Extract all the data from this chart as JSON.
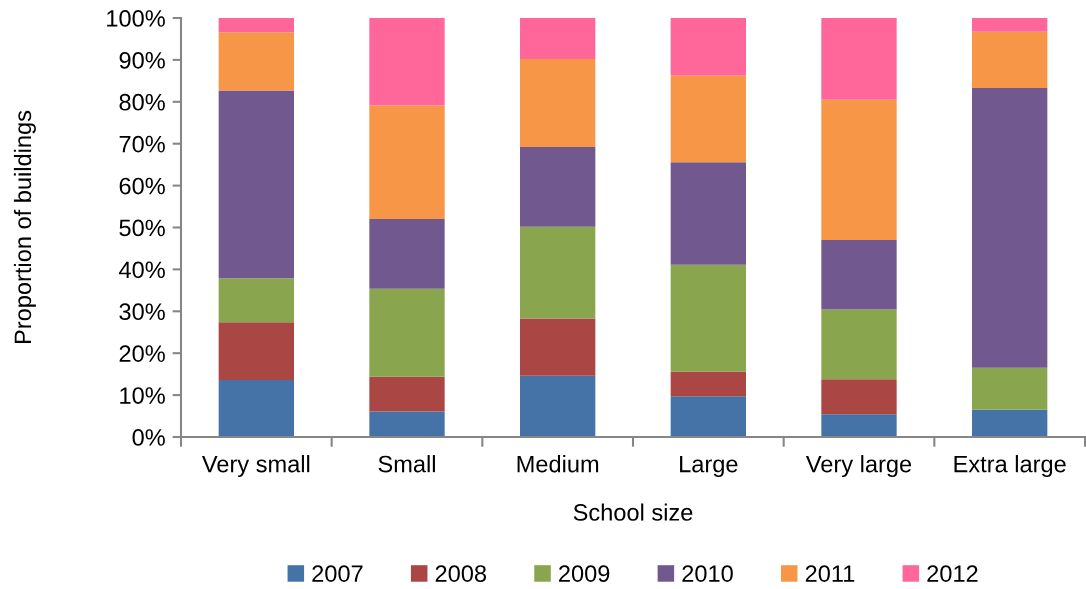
{
  "chart_data": {
    "type": "bar",
    "stacked": true,
    "xlabel": "School size",
    "ylabel": "Proportion of buildings",
    "categories": [
      "Very small",
      "Small",
      "Medium",
      "Large",
      "Very large",
      "Extra large"
    ],
    "series": [
      {
        "name": "2007",
        "color": "#4572a7",
        "values": [
          13.6,
          6.1,
          14.6,
          9.7,
          5.4,
          6.5
        ]
      },
      {
        "name": "2008",
        "color": "#aa4643",
        "values": [
          13.8,
          8.3,
          13.7,
          5.9,
          8.4,
          0
        ]
      },
      {
        "name": "2009",
        "color": "#89a54e",
        "values": [
          10.5,
          21.0,
          21.9,
          25.5,
          16.6,
          10.0
        ]
      },
      {
        "name": "2010",
        "color": "#71588f",
        "values": [
          44.8,
          16.6,
          19.0,
          24.5,
          16.6,
          66.8
        ]
      },
      {
        "name": "2011",
        "color": "#f79646",
        "values": [
          13.9,
          27.1,
          21.0,
          20.7,
          33.5,
          13.4
        ]
      },
      {
        "name": "2012",
        "color": "#ff6699",
        "values": [
          3.4,
          20.9,
          9.8,
          13.7,
          19.5,
          3.3
        ]
      }
    ],
    "ylim": [
      0,
      100
    ],
    "yticks": [
      {
        "value": 0,
        "label": "0%"
      },
      {
        "value": 10,
        "label": "10%"
      },
      {
        "value": 20,
        "label": "20%"
      },
      {
        "value": 30,
        "label": "30%"
      },
      {
        "value": 40,
        "label": "40%"
      },
      {
        "value": 50,
        "label": "50%"
      },
      {
        "value": 60,
        "label": "60%"
      },
      {
        "value": 70,
        "label": "70%"
      },
      {
        "value": 80,
        "label": "80%"
      },
      {
        "value": 90,
        "label": "90%"
      },
      {
        "value": 100,
        "label": "100%"
      }
    ],
    "grid": false,
    "legend": "bottom"
  }
}
